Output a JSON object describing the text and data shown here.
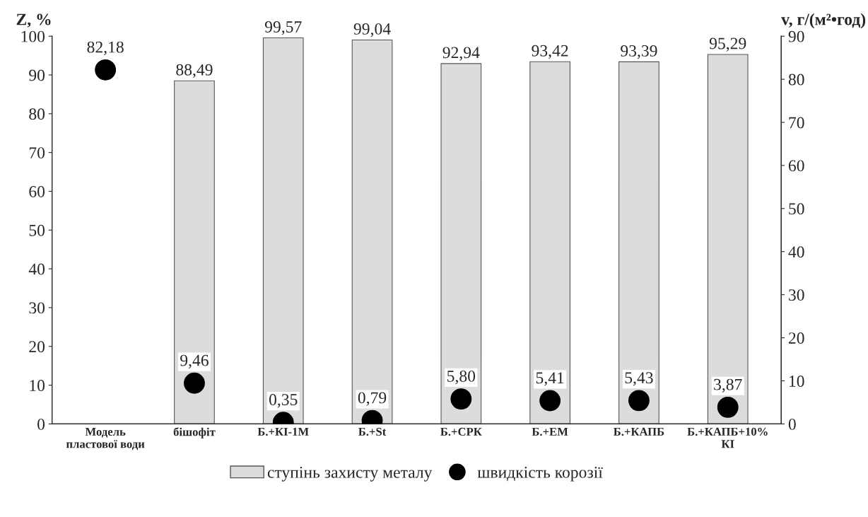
{
  "chart_data": {
    "type": "bar",
    "ylabel": "Z, %",
    "y2label": "v, г/(м²•год)",
    "categories": [
      "Модель\nпластової води",
      "бішофіт",
      "Б.+КІ-1М",
      "Б.+St",
      "Б.+СРК",
      "Б.+ЕМ",
      "Б.+КАПБ",
      "Б.+КАПБ+10%\nКІ"
    ],
    "series": [
      {
        "name": "ступінь захисту металу",
        "color": "#dcdcdc",
        "values": [
          null,
          88.49,
          99.57,
          99.04,
          92.94,
          93.42,
          93.39,
          95.29
        ],
        "value_labels": [
          null,
          "88,49",
          "99,57",
          "99,04",
          "92,94",
          "93,42",
          "93,39",
          "95,29"
        ]
      },
      {
        "name": "швидкість корозії",
        "type": "scatter",
        "axis": "y2",
        "color": "#000000",
        "marker": "circle",
        "values": [
          82.18,
          9.46,
          0.35,
          0.79,
          5.8,
          5.41,
          5.43,
          3.87
        ],
        "value_labels": [
          "82,18",
          "9,46",
          "0,35",
          "0,79",
          "5,80",
          "5,41",
          "5,43",
          "3,87"
        ]
      }
    ],
    "ylim": [
      0,
      100
    ],
    "yticks": [
      0,
      10,
      20,
      30,
      40,
      50,
      60,
      70,
      80,
      90,
      100
    ],
    "y2lim": [
      0,
      90
    ],
    "y2ticks": [
      0,
      10,
      20,
      30,
      40,
      50,
      60,
      70,
      80,
      90
    ],
    "grid": false,
    "legend": "bottom"
  }
}
